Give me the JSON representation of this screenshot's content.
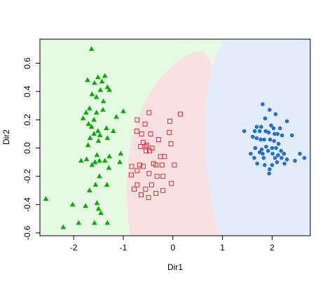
{
  "chart_data": {
    "type": "scatter",
    "title": "",
    "xlabel": "Dir1",
    "ylabel": "Dir2",
    "xlim": [
      -2.68,
      2.77
    ],
    "ylim": [
      -0.62,
      0.77
    ],
    "xticks": [
      -2,
      -1,
      0,
      1,
      2
    ],
    "yticks": [
      -0.6,
      -0.4,
      -0.2,
      0.0,
      0.2,
      0.4,
      0.6
    ],
    "xtick_labels": [
      "-2",
      "-1",
      "0",
      "1",
      "2"
    ],
    "ytick_labels": [
      "-0.6",
      "-0.4",
      "-0.2",
      "0.0",
      "0.2",
      "0.4",
      "0.6"
    ],
    "grid": false,
    "region_colors": [
      "#e6f9e2",
      "#f9e1e2",
      "#e3ecfa"
    ],
    "series": [
      {
        "marker": "triangle",
        "color": "#00b000",
        "fill": true,
        "points": [
          [
            -1.64,
            0.7
          ],
          [
            -1.37,
            0.51
          ],
          [
            -1.72,
            0.48
          ],
          [
            -1.51,
            0.5
          ],
          [
            -1.43,
            0.47
          ],
          [
            -1.58,
            0.46
          ],
          [
            -1.32,
            0.43
          ],
          [
            -1.46,
            0.41
          ],
          [
            -1.28,
            0.41
          ],
          [
            -1.63,
            0.38
          ],
          [
            -1.54,
            0.36
          ],
          [
            -1.4,
            0.33
          ],
          [
            -1.68,
            0.28
          ],
          [
            -1.41,
            0.27
          ],
          [
            -1.75,
            0.25
          ],
          [
            -1.54,
            0.25
          ],
          [
            -1.0,
            0.26
          ],
          [
            -1.14,
            0.22
          ],
          [
            -1.81,
            0.21
          ],
          [
            -1.59,
            0.2
          ],
          [
            -1.7,
            0.17
          ],
          [
            -1.64,
            0.15
          ],
          [
            -1.51,
            0.12
          ],
          [
            -1.34,
            0.14
          ],
          [
            -1.2,
            0.12
          ],
          [
            -1.59,
            0.1
          ],
          [
            -1.47,
            0.09
          ],
          [
            -1.67,
            0.07
          ],
          [
            -1.32,
            0.07
          ],
          [
            -1.5,
            0.05
          ],
          [
            -1.71,
            0.02
          ],
          [
            -1.05,
            -0.04
          ],
          [
            -1.53,
            -0.05
          ],
          [
            -1.28,
            -0.06
          ],
          [
            -1.85,
            -0.09
          ],
          [
            -1.74,
            -0.08
          ],
          [
            -1.57,
            -0.1
          ],
          [
            -1.48,
            -0.09
          ],
          [
            -1.37,
            -0.09
          ],
          [
            -1.07,
            -0.1
          ],
          [
            -1.63,
            -0.12
          ],
          [
            -1.29,
            -0.14
          ],
          [
            -1.48,
            -0.2
          ],
          [
            -1.56,
            -0.26
          ],
          [
            -1.33,
            -0.26
          ],
          [
            -1.68,
            -0.3
          ],
          [
            -2.56,
            -0.36
          ],
          [
            -2.02,
            -0.4
          ],
          [
            -1.53,
            -0.39
          ],
          [
            -1.76,
            -0.41
          ],
          [
            -1.5,
            -0.43
          ],
          [
            -1.45,
            -0.46
          ],
          [
            -1.32,
            -0.53
          ],
          [
            -1.58,
            -0.53
          ],
          [
            -1.9,
            -0.53
          ],
          [
            -2.21,
            -0.56
          ]
        ]
      },
      {
        "marker": "square",
        "color": "#cc3333",
        "fill": false,
        "points": [
          [
            -0.48,
            0.25
          ],
          [
            0.15,
            0.24
          ],
          [
            -0.72,
            0.2
          ],
          [
            -0.56,
            0.17
          ],
          [
            -0.06,
            0.19
          ],
          [
            -0.73,
            0.12
          ],
          [
            -0.45,
            0.1
          ],
          [
            -0.63,
            0.1
          ],
          [
            -0.07,
            0.11
          ],
          [
            -0.29,
            0.06
          ],
          [
            -0.53,
            0.02
          ],
          [
            -0.56,
            0.01
          ],
          [
            -0.6,
            0.04
          ],
          [
            -0.65,
            0.01
          ],
          [
            -0.04,
            0.03
          ],
          [
            -0.42,
            0.0
          ],
          [
            -0.47,
            -0.02
          ],
          [
            -0.54,
            -0.02
          ],
          [
            -0.25,
            -0.06
          ],
          [
            -0.17,
            -0.06
          ],
          [
            -0.83,
            -0.13
          ],
          [
            -0.67,
            -0.12
          ],
          [
            -0.6,
            -0.13
          ],
          [
            -0.39,
            -0.11
          ],
          [
            -0.34,
            -0.12
          ],
          [
            -0.22,
            -0.12
          ],
          [
            0.03,
            -0.12
          ],
          [
            -0.72,
            -0.16
          ],
          [
            -0.84,
            -0.19
          ],
          [
            -0.48,
            -0.18
          ],
          [
            -0.32,
            -0.2
          ],
          [
            -0.2,
            -0.2
          ],
          [
            -0.72,
            -0.26
          ],
          [
            -0.43,
            -0.26
          ],
          [
            -0.03,
            -0.25
          ],
          [
            -0.78,
            -0.29
          ],
          [
            -0.55,
            -0.29
          ],
          [
            -0.64,
            -0.33
          ],
          [
            -0.34,
            -0.32
          ],
          [
            -0.2,
            -0.3
          ],
          [
            -0.49,
            -0.35
          ]
        ]
      },
      {
        "marker": "circle",
        "color": "#1f6fd6",
        "fill": true,
        "points": [
          [
            1.81,
            0.31
          ],
          [
            1.95,
            0.27
          ],
          [
            2.07,
            0.24
          ],
          [
            1.86,
            0.21
          ],
          [
            2.3,
            0.19
          ],
          [
            1.98,
            0.16
          ],
          [
            1.69,
            0.15
          ],
          [
            1.78,
            0.15
          ],
          [
            2.03,
            0.14
          ],
          [
            2.16,
            0.14
          ],
          [
            1.44,
            0.12
          ],
          [
            1.65,
            0.12
          ],
          [
            1.75,
            0.12
          ],
          [
            1.87,
            0.12
          ],
          [
            1.93,
            0.11
          ],
          [
            2.05,
            0.1
          ],
          [
            2.11,
            0.1
          ],
          [
            2.2,
            0.09
          ],
          [
            1.61,
            0.08
          ],
          [
            1.69,
            0.07
          ],
          [
            1.77,
            0.06
          ],
          [
            1.84,
            0.06
          ],
          [
            1.96,
            0.06
          ],
          [
            2.4,
            0.09
          ],
          [
            2.04,
            0.05
          ],
          [
            2.13,
            0.03
          ],
          [
            1.66,
            0.0
          ],
          [
            1.88,
            0.01
          ],
          [
            2.0,
            0.0
          ],
          [
            2.08,
            0.0
          ],
          [
            1.79,
            -0.01
          ],
          [
            1.92,
            -0.02
          ],
          [
            2.18,
            -0.02
          ],
          [
            1.57,
            -0.04
          ],
          [
            1.75,
            -0.03
          ],
          [
            1.81,
            -0.04
          ],
          [
            2.01,
            -0.04
          ],
          [
            2.12,
            -0.05
          ],
          [
            2.24,
            -0.04
          ],
          [
            2.56,
            -0.04
          ],
          [
            1.64,
            -0.07
          ],
          [
            1.83,
            -0.07
          ],
          [
            2.06,
            -0.07
          ],
          [
            2.19,
            -0.07
          ],
          [
            2.3,
            -0.08
          ],
          [
            2.46,
            -0.09
          ],
          [
            2.65,
            -0.07
          ],
          [
            2.1,
            -0.1
          ],
          [
            2.25,
            -0.11
          ],
          [
            1.7,
            -0.11
          ],
          [
            1.85,
            -0.12
          ],
          [
            2.0,
            -0.12
          ],
          [
            1.95,
            -0.15
          ],
          [
            1.94,
            -0.18
          ]
        ]
      }
    ]
  }
}
